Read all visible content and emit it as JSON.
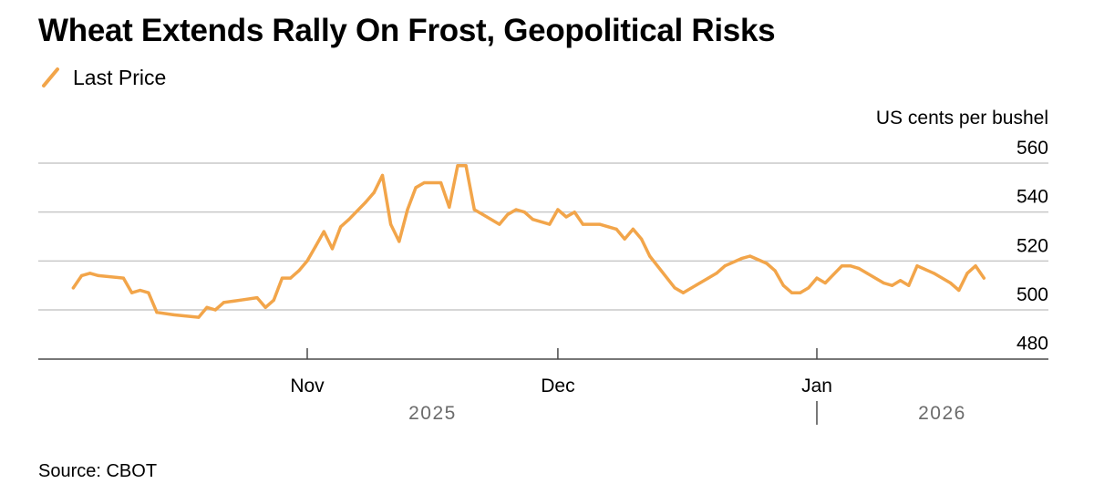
{
  "title": "Wheat Extends Rally On Frost, Geopolitical Risks",
  "source": "Source: CBOT",
  "colors": {
    "series": "#f2a54a",
    "grid": "#c8c8c8",
    "axis": "#4a4a4a",
    "year_text": "#6b6b6b"
  },
  "chart_data": {
    "type": "line",
    "title": "Wheat Extends Rally On Frost, Geopolitical Risks",
    "ylabel": "US cents per bushel",
    "ylim": [
      474,
      566
    ],
    "y_ticks": [
      560,
      540,
      520,
      500,
      480
    ],
    "x_range": [
      "2025-10-03",
      "2026-01-23"
    ],
    "x_ticks": [
      {
        "date": "2025-11-01",
        "label": "Nov"
      },
      {
        "date": "2025-12-01",
        "label": "Dec"
      },
      {
        "date": "2026-01-01",
        "label": "Jan"
      }
    ],
    "year_labels": [
      {
        "date": "2025-11-16",
        "label": "2025"
      },
      {
        "date": "2026-01-16",
        "label": "2026"
      }
    ],
    "year_divider": "2026-01-01",
    "legend": [
      "Last Price"
    ],
    "grid": true,
    "series": [
      {
        "name": "Last Price",
        "x": [
          "2025-10-04",
          "2025-10-05",
          "2025-10-06",
          "2025-10-07",
          "2025-10-10",
          "2025-10-11",
          "2025-10-12",
          "2025-10-13",
          "2025-10-14",
          "2025-10-16",
          "2025-10-19",
          "2025-10-20",
          "2025-10-21",
          "2025-10-22",
          "2025-10-24",
          "2025-10-26",
          "2025-10-27",
          "2025-10-28",
          "2025-10-29",
          "2025-10-30",
          "2025-10-31",
          "2025-11-01",
          "2025-11-02",
          "2025-11-03",
          "2025-11-04",
          "2025-11-05",
          "2025-11-06",
          "2025-11-08",
          "2025-11-09",
          "2025-11-10",
          "2025-11-11",
          "2025-11-12",
          "2025-11-13",
          "2025-11-14",
          "2025-11-15",
          "2025-11-17",
          "2025-11-18",
          "2025-11-19",
          "2025-11-20",
          "2025-11-21",
          "2025-11-22",
          "2025-11-24",
          "2025-11-25",
          "2025-11-26",
          "2025-11-27",
          "2025-11-28",
          "2025-11-30",
          "2025-12-01",
          "2025-12-02",
          "2025-12-03",
          "2025-12-04",
          "2025-12-06",
          "2025-12-08",
          "2025-12-09",
          "2025-12-10",
          "2025-12-11",
          "2025-12-12",
          "2025-12-15",
          "2025-12-16",
          "2025-12-18",
          "2025-12-19",
          "2025-12-20",
          "2025-12-21",
          "2025-12-23",
          "2025-12-24",
          "2025-12-26",
          "2025-12-27",
          "2025-12-28",
          "2025-12-29",
          "2025-12-30",
          "2025-12-31",
          "2026-01-01",
          "2026-01-02",
          "2026-01-04",
          "2026-01-05",
          "2026-01-06",
          "2026-01-07",
          "2026-01-09",
          "2026-01-10",
          "2026-01-11",
          "2026-01-12",
          "2026-01-13",
          "2026-01-15",
          "2026-01-17",
          "2026-01-18",
          "2026-01-19",
          "2026-01-20",
          "2026-01-21"
        ],
        "values": [
          509,
          514,
          515,
          514,
          513,
          507,
          508,
          507,
          499,
          498,
          497,
          501,
          500,
          503,
          504,
          505,
          501,
          504,
          513,
          513,
          516,
          520,
          526,
          532,
          525,
          534,
          537,
          544,
          548,
          555,
          535,
          528,
          541,
          550,
          552,
          552,
          542,
          559,
          559,
          541,
          539,
          535,
          539,
          541,
          540,
          537,
          535,
          541,
          538,
          540,
          535,
          535,
          533,
          529,
          533,
          529,
          522,
          509,
          507,
          511,
          513,
          515,
          518,
          521,
          522,
          519,
          516,
          510,
          507,
          507,
          509,
          513,
          511,
          518,
          518,
          517,
          515,
          511,
          510,
          512,
          510,
          518,
          515,
          511,
          508,
          515,
          518,
          513
        ]
      }
    ]
  }
}
